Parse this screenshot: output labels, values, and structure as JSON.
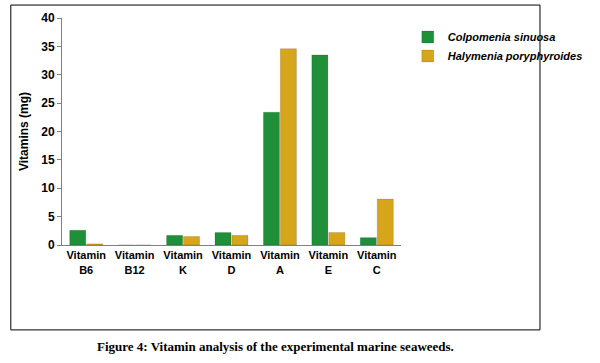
{
  "chart_data": {
    "type": "bar",
    "title": "Figure 4: Vitamin analysis of the experimental marine seaweeds.",
    "y_label": "Vitamins (mg)",
    "categories": [
      "Vitamin B6",
      "Vitamin B12",
      "Vitamin K",
      "Vitamin D",
      "Vitamin A",
      "Vitamin E",
      "Vitamin C"
    ],
    "series": [
      {
        "name": "Colpomenia sinuosa",
        "color": "#1f8f3a",
        "values": [
          2.6,
          0,
          1.7,
          2.2,
          23.4,
          33.5,
          1.3
        ]
      },
      {
        "name": "Halymenia poryphyroides",
        "color": "#d6a51c",
        "values": [
          0.2,
          0,
          1.5,
          1.7,
          34.6,
          2.2,
          8.1
        ]
      }
    ],
    "ylim": [
      0,
      40
    ],
    "yticks": [
      0,
      5,
      10,
      15,
      20,
      25,
      30,
      35,
      40
    ],
    "grid": false,
    "legend": "right"
  }
}
